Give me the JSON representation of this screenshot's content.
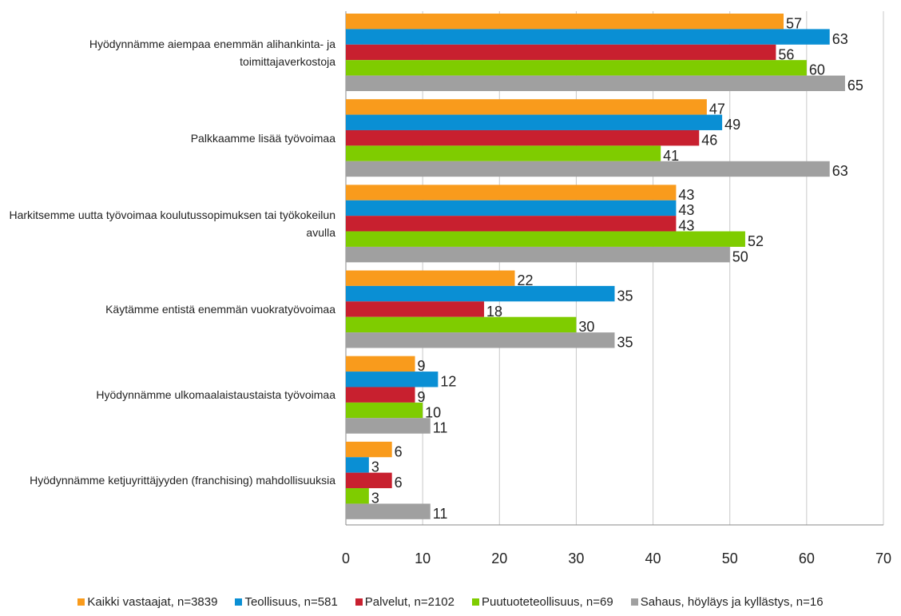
{
  "chart_data": {
    "type": "bar",
    "orientation": "horizontal",
    "categories": [
      "Hyödynnämme aiempaa enemmän alihankinta- ja toimittajaverkostoja",
      "Palkkaamme lisää työvoimaa",
      "Harkitsemme uutta työvoimaa koulutussopimuksen tai työkokeilun avulla",
      "Käytämme entistä enemmän vuokratyövoimaa",
      "Hyödynnämme ulkomaalaistaustaista työvoimaa",
      "Hyödynnämme ketjuyrittäjyyden (franchising) mahdollisuuksia"
    ],
    "series": [
      {
        "name": "Kaikki vastaajat, n=3839",
        "color": "#f99b1c",
        "values": [
          57,
          47,
          43,
          22,
          9,
          6
        ]
      },
      {
        "name": "Teollisuus, n=581",
        "color": "#0a8fd4",
        "values": [
          63,
          49,
          43,
          35,
          12,
          3
        ]
      },
      {
        "name": "Palvelut, n=2102",
        "color": "#c8202f",
        "values": [
          56,
          46,
          43,
          18,
          9,
          6
        ]
      },
      {
        "name": "Puutuoteteollisuus, n=69",
        "color": "#7fcc00",
        "values": [
          60,
          41,
          52,
          30,
          10,
          3
        ]
      },
      {
        "name": "Sahaus, höyläys ja kyllästys, n=16",
        "color": "#a0a0a0",
        "values": [
          65,
          63,
          50,
          35,
          11,
          11
        ]
      }
    ],
    "xlim": [
      0,
      70
    ],
    "xticks": [
      0,
      10,
      20,
      30,
      40,
      50,
      60,
      70
    ],
    "grid": true,
    "legend": "bottom"
  }
}
